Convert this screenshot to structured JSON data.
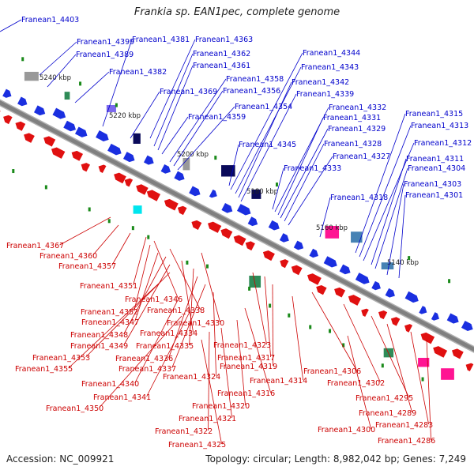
{
  "title": "Frankia sp. EAN1pec, complete genome",
  "footer": {
    "accession_label": "Accession:",
    "accession": "NC_009921",
    "topology_label": "Topology:",
    "topology": "circular",
    "length_label": "Length:",
    "length": "8,982,042 bp",
    "genes_label": "Genes:",
    "genes": "7,249"
  },
  "colors": {
    "forward_label": "#0000cc",
    "reverse_label": "#cc0000",
    "forward_gene": "#1a2fe0",
    "reverse_gene": "#e01010",
    "backbone": "#808080",
    "text": "#222222"
  },
  "scale_ticks": [
    "5240 kbp",
    "5220 kbp",
    "5200 kbp",
    "5180 kbp",
    "5160 kbp",
    "5140 kbp"
  ],
  "forward_genes": [
    "Franean1_4403",
    "Franean1_4399",
    "Franean1_4389",
    "Franean1_4382",
    "Franean1_4381",
    "Franean1_4369",
    "Franean1_4363",
    "Franean1_4362",
    "Franean1_4361",
    "Franean1_4359",
    "Franean1_4358",
    "Franean1_4356",
    "Franean1_4354",
    "Franean1_4345",
    "Franean1_4344",
    "Franean1_4343",
    "Franean1_4342",
    "Franean1_4339",
    "Franean1_4333",
    "Franean1_4332",
    "Franean1_4331",
    "Franean1_4329",
    "Franean1_4328",
    "Franean1_4327",
    "Franean1_4318",
    "Franean1_4315",
    "Franean1_4313",
    "Franean1_4312",
    "Franean1_4311",
    "Franean1_4304",
    "Franean1_4303",
    "Franean1_4301"
  ],
  "reverse_genes": [
    "Franean1_4367",
    "Franean1_4360",
    "Franean1_4357",
    "Franean1_4351",
    "Franean1_4346",
    "Franean1_4352",
    "Franean1_4338",
    "Franean1_4347",
    "Franean1_4330",
    "Franean1_4348",
    "Franean1_4334",
    "Franean1_4349",
    "Franean1_4335",
    "Franean1_4323",
    "Franean1_4353",
    "Franean1_4336",
    "Franean1_4317",
    "Franean1_4355",
    "Franean1_4337",
    "Franean1_4319",
    "Franean1_4306",
    "Franean1_4324",
    "Franean1_4314",
    "Franean1_4340",
    "Franean1_4302",
    "Franean1_4316",
    "Franean1_4341",
    "Franean1_4295",
    "Franean1_4350",
    "Franean1_4320",
    "Franean1_4289",
    "Franean1_4321",
    "Franean1_4283",
    "Franean1_4322",
    "Franean1_4300",
    "Franean1_4286",
    "Franean1_4325"
  ]
}
